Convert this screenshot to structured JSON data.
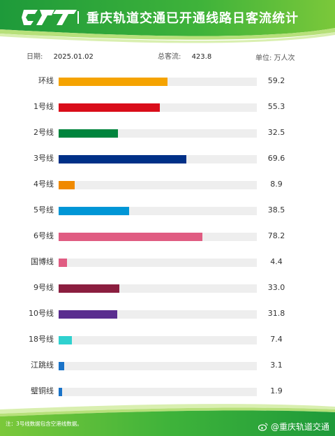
{
  "header": {
    "title": "重庆轨道交通已开通线路日客流统计",
    "logo_icon": "crt-logo-icon"
  },
  "info": {
    "date_label": "日期:",
    "date_value": "2025.01.02",
    "total_label": "总客流:",
    "total_value": "423.8",
    "unit_label": "单位: 万人次"
  },
  "chart_data": {
    "type": "bar",
    "orientation": "horizontal",
    "categories": [
      "环线",
      "1号线",
      "2号线",
      "3号线",
      "4号线",
      "5号线",
      "6号线",
      "国博线",
      "9号线",
      "10号线",
      "18号线",
      "江跳线",
      "璧铜线"
    ],
    "values": [
      59.2,
      55.3,
      32.5,
      69.6,
      8.9,
      38.5,
      78.2,
      4.4,
      33.0,
      31.8,
      7.4,
      3.1,
      1.9
    ],
    "value_labels": [
      "59.2",
      "55.3",
      "32.5",
      "69.6",
      "8.9",
      "38.5",
      "78.2",
      "4.4",
      "33.0",
      "31.8",
      "7.4",
      "3.1",
      "1.9"
    ],
    "colors": [
      "#f5a300",
      "#d90d1a",
      "#00843d",
      "#003087",
      "#f08a00",
      "#0096d6",
      "#e05c82",
      "#e05c82",
      "#8b1e3f",
      "#5a2d8f",
      "#2fd1cf",
      "#1a73c8",
      "#1a73c8"
    ],
    "xlim": [
      0,
      108
    ],
    "grid": false
  },
  "footer": {
    "note": "注：3号线数据包含空港线数据。",
    "weibo_handle": "@重庆轨道交通"
  },
  "colors": {
    "brand_green": "#3aa536",
    "brand_green_light": "#8ccf3a"
  }
}
